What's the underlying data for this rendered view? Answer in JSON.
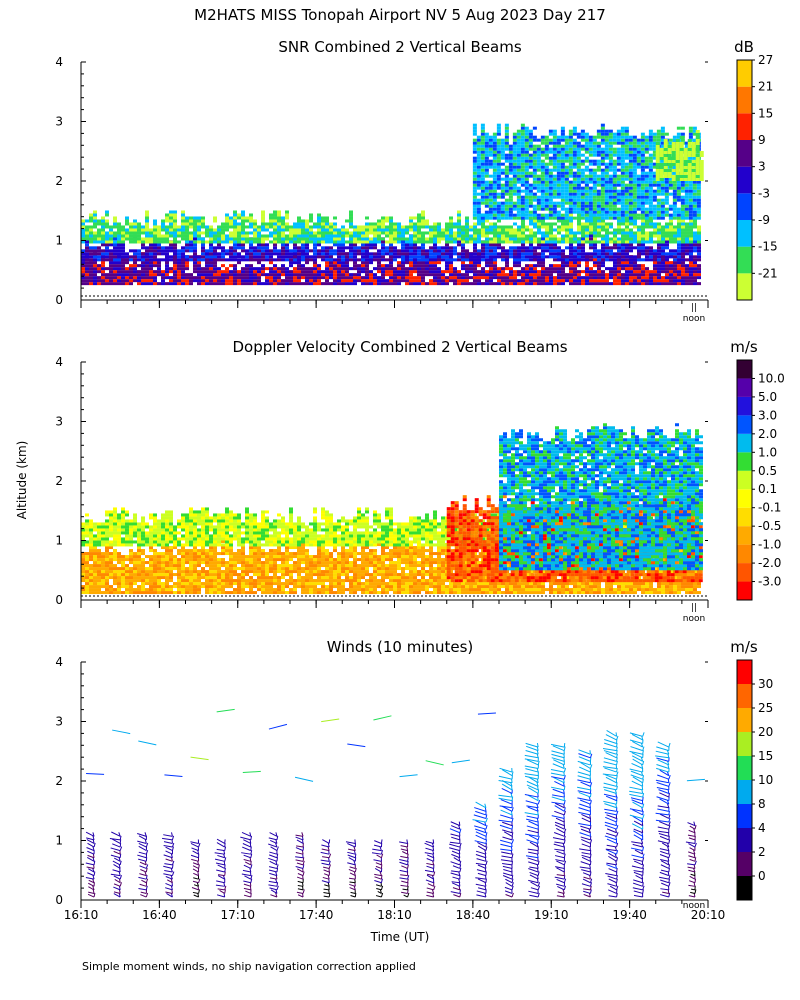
{
  "figure": {
    "title": "M2HATS MISS Tonopah Airport NV   5 Aug 2023 Day 217",
    "ylabel": "Altitude (km)",
    "xlabel": "Time (UT)",
    "footnote": "Simple moment winds, no ship navigation correction applied",
    "noon_label": "noon",
    "noon_marker": "||"
  },
  "chart_data": [
    {
      "type": "heatmap",
      "title": "SNR Combined 2 Vertical Beams",
      "unit": "dB",
      "ylim": [
        0,
        4
      ],
      "yticks": [
        "0",
        "1",
        "2",
        "3",
        "4"
      ],
      "xlim": [
        16.1667,
        20.1667
      ],
      "colorbar": {
        "labels": [
          "-21",
          "-15",
          "-9",
          "-3",
          "3",
          "9",
          "15",
          "21",
          "27"
        ],
        "colors": [
          "#ccff33",
          "#33dd55",
          "#00c0ff",
          "#0044ff",
          "#2200cc",
          "#550088",
          "#ff2200",
          "#ff7700",
          "#ffcc00"
        ]
      },
      "layers": [
        {
          "base": 0.25,
          "top": 0.65,
          "level": "9"
        },
        {
          "base": 0.65,
          "top": 0.95,
          "level": "3"
        },
        {
          "base": 0.95,
          "top": 1.35,
          "level": "-15"
        },
        {
          "base": 1.35,
          "top": 2.8,
          "level": "-9",
          "from": "18:40"
        },
        {
          "base": 2.0,
          "top": 2.7,
          "level": "-21",
          "from": "19:50"
        }
      ]
    },
    {
      "type": "heatmap",
      "title": "Doppler Velocity Combined 2 Vertical Beams",
      "unit": "m/s",
      "ylim": [
        0,
        4
      ],
      "yticks": [
        "0",
        "1",
        "2",
        "3",
        "4"
      ],
      "xlim": [
        16.1667,
        20.1667
      ],
      "colorbar": {
        "labels": [
          "-3.0",
          "-2.0",
          "-1.0",
          "-0.5",
          "-0.1",
          "0.1",
          "0.5",
          "1.0",
          "2.0",
          "3.0",
          "5.0",
          "10.0"
        ],
        "colors": [
          "#ff0000",
          "#ff5500",
          "#ff8800",
          "#ffaa00",
          "#ffdd00",
          "#ffff00",
          "#ccff22",
          "#33dd33",
          "#00bbee",
          "#0055ff",
          "#2211dd",
          "#5500aa",
          "#330033"
        ]
      },
      "layers": [
        {
          "base": 0.1,
          "top": 0.9,
          "level": "-0.5"
        },
        {
          "base": 0.9,
          "top": 1.4,
          "level": "0.5"
        },
        {
          "base": 0.3,
          "top": 1.6,
          "level": "-2.0",
          "from": "18:30"
        },
        {
          "base": 0.5,
          "top": 2.8,
          "level": "2.0",
          "from": "18:50"
        }
      ]
    },
    {
      "type": "wind_barbs",
      "title": "Winds (10 minutes)",
      "unit": "m/s",
      "ylim": [
        0,
        4
      ],
      "yticks": [
        "0",
        "1",
        "2",
        "3",
        "4"
      ],
      "xticks": [
        "16:10",
        "16:40",
        "17:10",
        "17:40",
        "18:10",
        "18:40",
        "19:10",
        "19:40",
        "20:10"
      ],
      "colorbar": {
        "labels": [
          "0",
          "2",
          "4",
          "8",
          "10",
          "15",
          "20",
          "25",
          "30"
        ],
        "colors": [
          "#000000",
          "#550066",
          "#2200aa",
          "#0033ff",
          "#00aaee",
          "#22dd55",
          "#aaee22",
          "#ffaa00",
          "#ff6600",
          "#ff0000"
        ]
      },
      "profile_times": [
        "16:15",
        "16:25",
        "16:35",
        "16:45",
        "16:55",
        "17:05",
        "17:15",
        "17:25",
        "17:35",
        "17:45",
        "17:55",
        "18:05",
        "18:15",
        "18:25",
        "18:35",
        "18:45",
        "18:55",
        "19:05",
        "19:15",
        "19:25",
        "19:35",
        "19:45",
        "19:55",
        "20:05"
      ],
      "profile_tops_km": [
        1.1,
        1.1,
        1.1,
        1.1,
        1.0,
        1.0,
        1.1,
        1.1,
        1.1,
        1.0,
        1.0,
        1.0,
        1.0,
        1.0,
        1.3,
        1.6,
        2.2,
        2.6,
        2.6,
        2.5,
        2.8,
        2.8,
        2.6,
        1.3
      ],
      "profile_speeds_ms": [
        3,
        3,
        3,
        3,
        2,
        3,
        3,
        3,
        2,
        2,
        2,
        2,
        2,
        3,
        4,
        5,
        5,
        5,
        4,
        4,
        5,
        5,
        4,
        1
      ]
    }
  ]
}
